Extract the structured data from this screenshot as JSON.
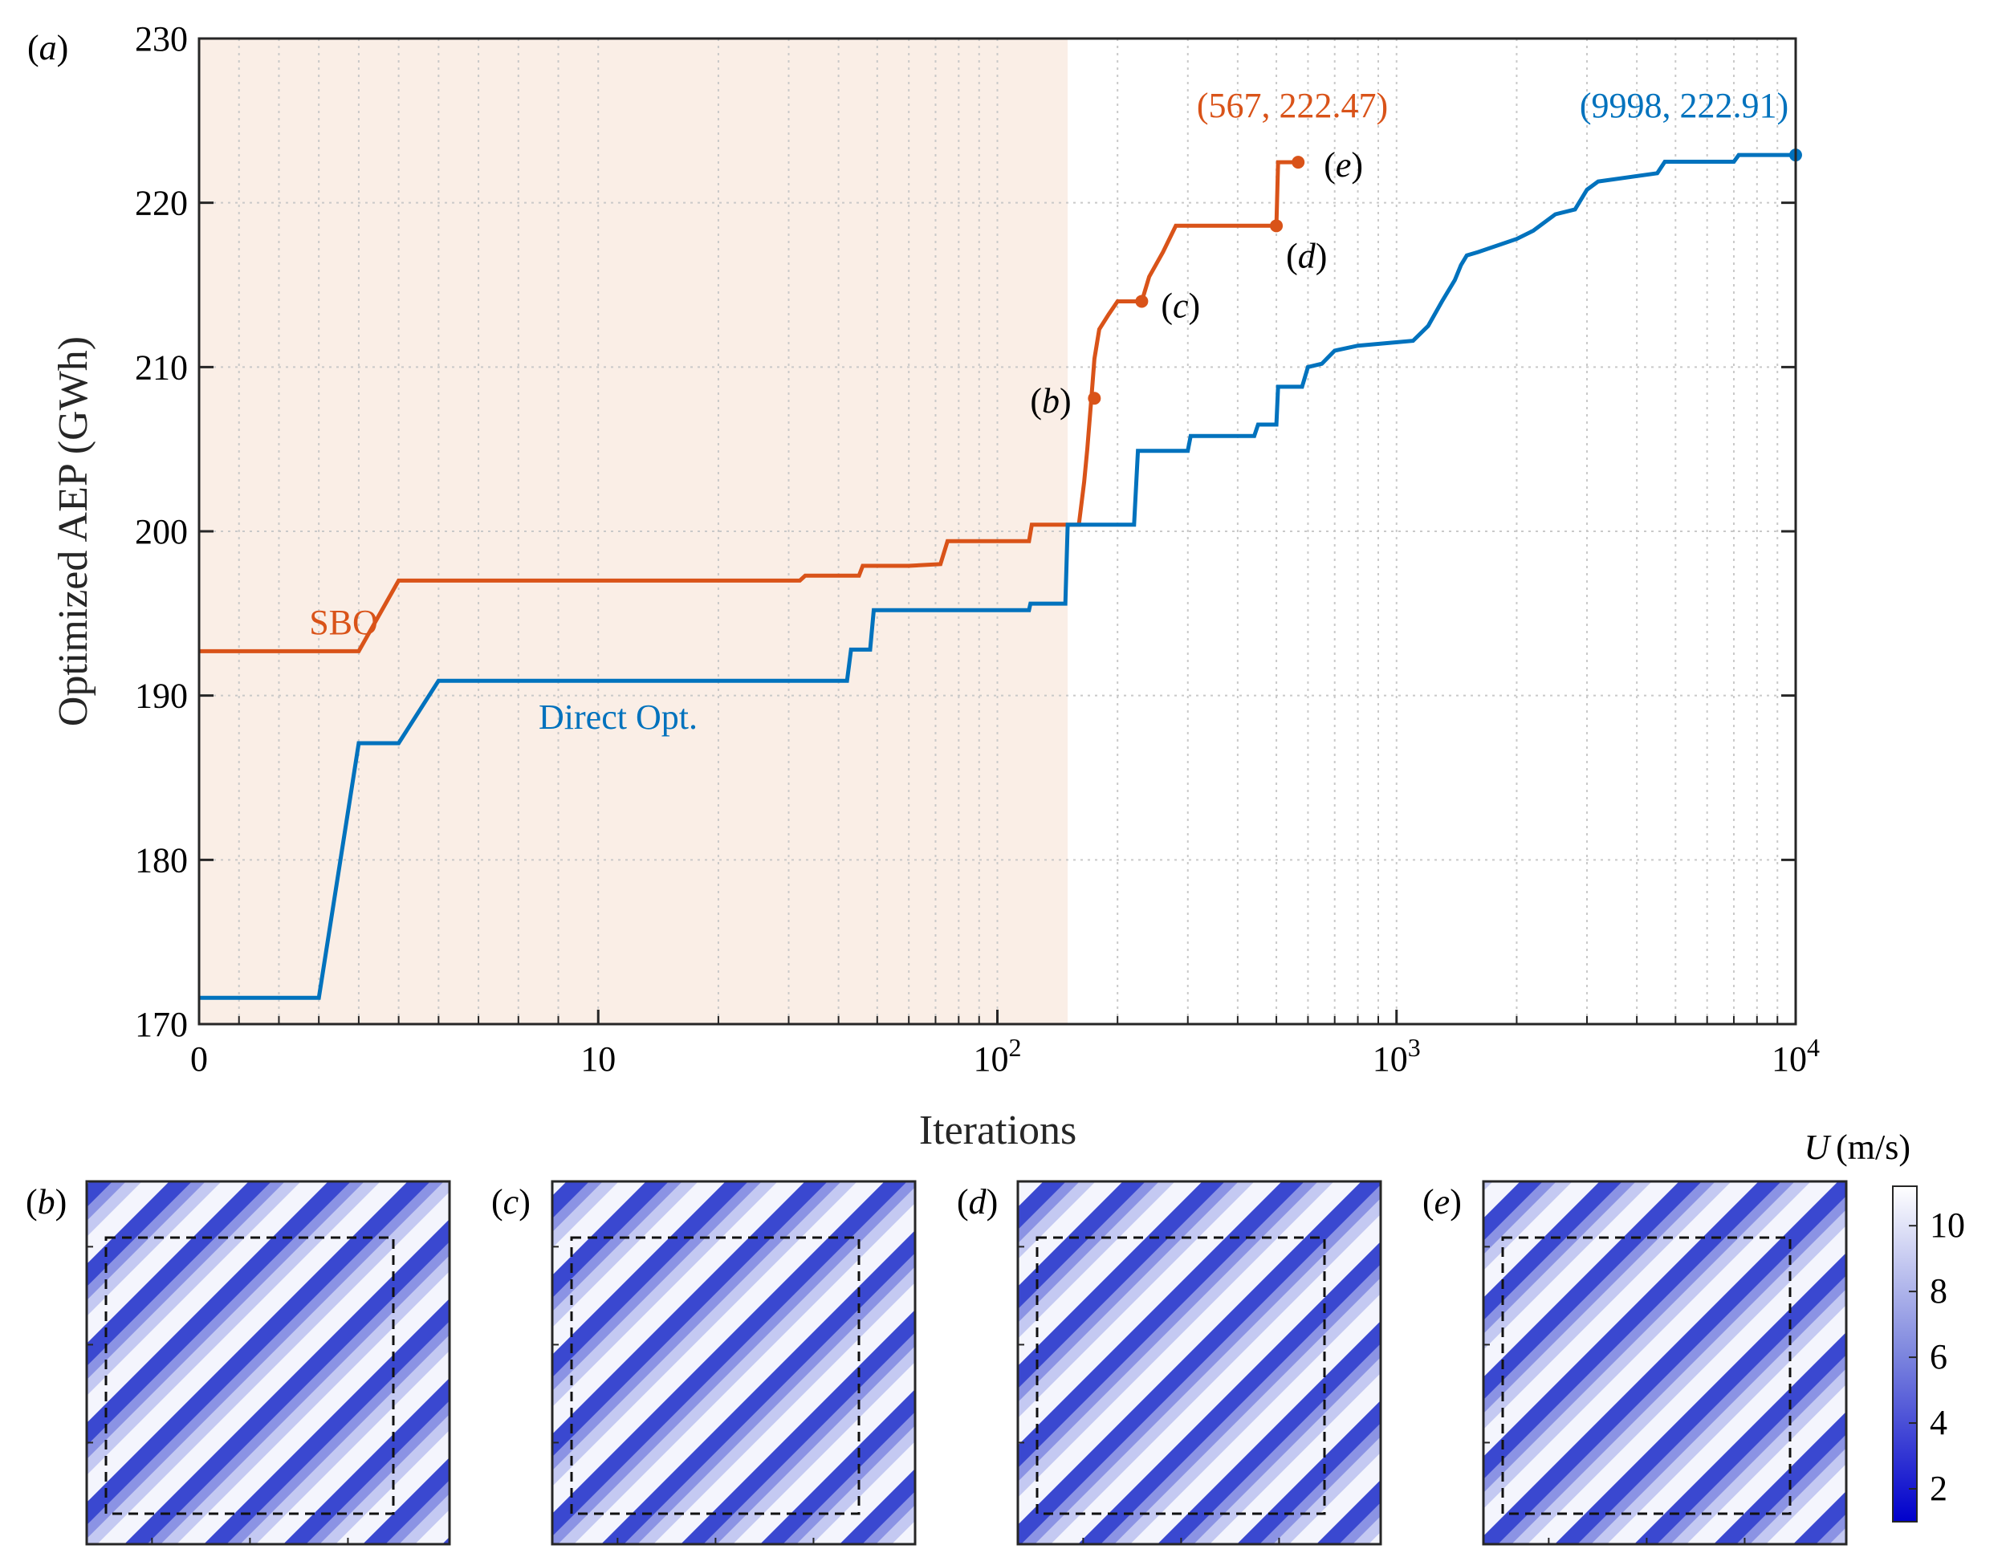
{
  "chart_data": {
    "type": "line",
    "panel_label": "a",
    "xlabel": "Iterations",
    "ylabel": "Optimized AEP (GWh)",
    "xscale": "symlog (linear 0-10, log above)",
    "xlim": [
      0,
      10000
    ],
    "ylim": [
      170,
      230
    ],
    "yticks": [
      170,
      180,
      190,
      200,
      210,
      220,
      230
    ],
    "xticks": [
      {
        "value": 0,
        "label": "0"
      },
      {
        "value": 10,
        "label": "10"
      },
      {
        "value": 100,
        "base": "10",
        "exp": "2"
      },
      {
        "value": 1000,
        "base": "10",
        "exp": "3"
      },
      {
        "value": 10000,
        "base": "10",
        "exp": "4"
      }
    ],
    "grid": true,
    "shaded_region": {
      "x": [
        0,
        150
      ],
      "color": "#faeee6"
    },
    "series": [
      {
        "name": "SBO",
        "color": "#d95319",
        "x": [
          0,
          4,
          5,
          32,
          33,
          45,
          46,
          60,
          72,
          75,
          120,
          122,
          150,
          160,
          165,
          168,
          172,
          175,
          180,
          190,
          200,
          230,
          240,
          260,
          280,
          500,
          505,
          567
        ],
        "y": [
          192.7,
          192.7,
          197.0,
          197.0,
          197.3,
          197.3,
          197.9,
          197.9,
          198.0,
          199.4,
          199.4,
          200.4,
          200.4,
          200.4,
          203.0,
          205.0,
          208.1,
          210.5,
          212.3,
          213.2,
          214.0,
          214.0,
          215.5,
          217.0,
          218.6,
          218.6,
          222.47,
          222.47
        ],
        "markers": [
          {
            "x": 175,
            "y": 208.1,
            "label": "b"
          },
          {
            "x": 230,
            "y": 214.0,
            "label": "c"
          },
          {
            "x": 500,
            "y": 218.6,
            "label": "d"
          },
          {
            "x": 567,
            "y": 222.47,
            "label": "e"
          }
        ],
        "end_annotation": "(567, 222.47)"
      },
      {
        "name": "Direct Opt.",
        "color": "#0072bd",
        "x": [
          0,
          3,
          4,
          5,
          6,
          42,
          43,
          48,
          49,
          120,
          121,
          148,
          150,
          220,
          225,
          300,
          305,
          440,
          450,
          500,
          505,
          580,
          600,
          650,
          700,
          800,
          1100,
          1200,
          1300,
          1400,
          1450,
          1500,
          1600,
          2000,
          2200,
          2500,
          2800,
          3000,
          3200,
          4500,
          4700,
          7000,
          7200,
          9998
        ],
        "y": [
          171.6,
          171.6,
          187.1,
          187.1,
          190.9,
          190.9,
          192.8,
          192.8,
          195.2,
          195.2,
          195.6,
          195.6,
          200.4,
          200.4,
          204.9,
          204.9,
          205.8,
          205.8,
          206.5,
          206.5,
          208.8,
          208.8,
          210.0,
          210.2,
          211.0,
          211.3,
          211.6,
          212.5,
          214.0,
          215.3,
          216.2,
          216.8,
          217.0,
          217.8,
          218.3,
          219.3,
          219.6,
          220.8,
          221.3,
          221.8,
          222.5,
          222.5,
          222.91,
          222.91
        ],
        "end_marker": {
          "x": 9998,
          "y": 222.91
        },
        "end_annotation": "(9998, 222.91)"
      }
    ]
  },
  "flow_panels": {
    "labels": [
      "b",
      "c",
      "d",
      "e"
    ],
    "colorbar": {
      "title_symbol": "U",
      "title_unit": "(m/s)",
      "ticks": [
        "10",
        "8",
        "6",
        "4",
        "2"
      ],
      "min": 1.0,
      "max": 11.2,
      "color_low": "#0000cc",
      "color_high": "#ffffff"
    }
  }
}
